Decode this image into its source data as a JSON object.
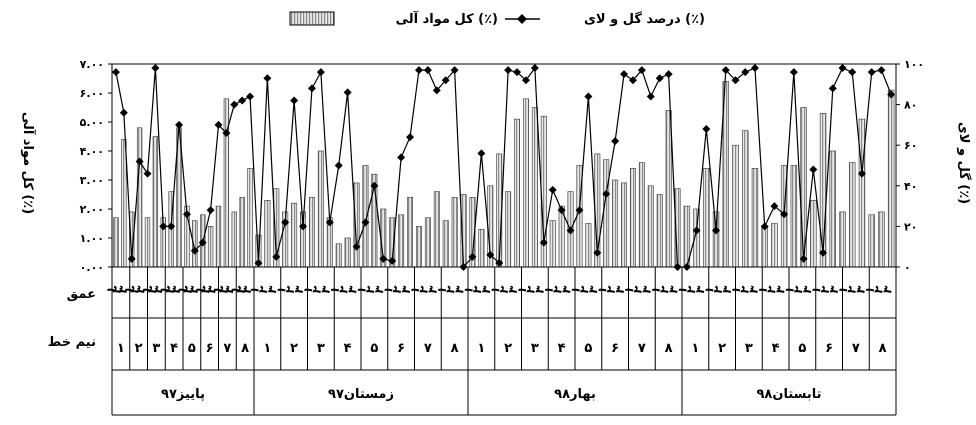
{
  "chart_data": {
    "type": "bar+line",
    "legend": {
      "line_label": "درصد گل و لای (٪)",
      "bar_label": "کل مواد آلی (٪)",
      "placement": "top-center"
    },
    "left_axis": {
      "label": "کل مواد آلی (٪)",
      "ticks": [
        "۷.۰۰",
        "۶.۰۰",
        "۵.۰۰",
        "۴.۰۰",
        "۳.۰۰",
        "۲.۰۰",
        "۱.۰۰",
        "۰.۰۰"
      ],
      "ylim": [
        0,
        7
      ]
    },
    "right_axis": {
      "label": "گل و لای (٪)",
      "ticks": [
        "۱۰۰",
        "۸۰",
        "۶۰",
        "۴۰",
        "۲۰",
        "۰"
      ],
      "ylim": [
        0,
        100
      ]
    },
    "row_labels": {
      "depth": "عمق",
      "transect": "نیم خط"
    },
    "depth_labels": [
      "۱",
      "۲",
      "۳"
    ],
    "seasons": [
      {
        "name": "پاییز۹۷",
        "transects": [
          "۱",
          "۲",
          "۳",
          "۴",
          "۵",
          "۶",
          "۷",
          "۸"
        ],
        "bars": [
          1.7,
          4.4,
          1.9,
          4.8,
          1.7,
          4.5,
          1.7,
          2.6,
          4.8,
          2.1,
          1.6,
          1.8,
          1.4,
          2.1,
          5.8,
          1.9,
          2.4,
          3.4
        ],
        "line": [
          96,
          76,
          4,
          52,
          46,
          98,
          20,
          20,
          70,
          26,
          8,
          12,
          28,
          70,
          66,
          80,
          82,
          84
        ]
      },
      {
        "name": "زمستان۹۷",
        "transects": [
          "۱",
          "۲",
          "۳",
          "۴",
          "۵",
          "۶",
          "۷",
          "۸"
        ],
        "bars": [
          1.1,
          2.3,
          2.7,
          1.9,
          2.2,
          1.9,
          2.4,
          4.0,
          1.7,
          0.8,
          1.0,
          2.9,
          3.5,
          3.2,
          2.0,
          1.7,
          1.8,
          2.4,
          1.4,
          1.7,
          2.6,
          1.6,
          2.4,
          2.5
        ],
        "line": [
          2,
          93,
          5,
          22,
          82,
          20,
          88,
          96,
          22,
          50,
          86,
          10,
          22,
          40,
          4,
          3,
          54,
          64,
          97,
          97,
          87,
          92,
          97,
          0
        ],
        "bar_note": ""
      },
      {
        "name": "بهار۹۸",
        "transects": [
          "۱",
          "۲",
          "۳",
          "۴",
          "۵",
          "۶",
          "۷",
          "۸"
        ],
        "bars": [
          2.4,
          1.3,
          2.8,
          3.9,
          2.6,
          5.1,
          5.8,
          5.5,
          5.2,
          1.6,
          2.1,
          2.6,
          3.5,
          1.5,
          3.9,
          3.7,
          3.0,
          2.9,
          3.4,
          3.6,
          2.8,
          2.5,
          5.4,
          2.7
        ],
        "line": [
          5,
          56,
          6,
          2,
          97,
          96,
          92,
          98,
          12,
          38,
          28,
          18,
          28,
          84,
          7,
          36,
          62,
          95,
          92,
          97,
          84,
          93,
          95,
          0
        ],
        "bar_note": ""
      },
      {
        "name": "تابستان۹۸",
        "transects": [
          "۱",
          "۲",
          "۳",
          "۴",
          "۵",
          "۶",
          "۷",
          "۸"
        ],
        "bars": [
          2.1,
          2.0,
          3.4,
          1.9,
          6.4,
          4.2,
          4.7,
          3.4,
          1.4,
          1.5,
          3.5,
          3.5,
          5.5,
          2.3,
          5.3,
          4.0,
          1.9,
          3.6,
          5.1,
          1.8,
          1.9,
          6.1
        ],
        "line": [
          0,
          18,
          68,
          18,
          97,
          92,
          96,
          98,
          20,
          30,
          26,
          96,
          4,
          48,
          7,
          88,
          98,
          96,
          46,
          96,
          97,
          85
        ],
        "bar_note": ""
      }
    ]
  }
}
